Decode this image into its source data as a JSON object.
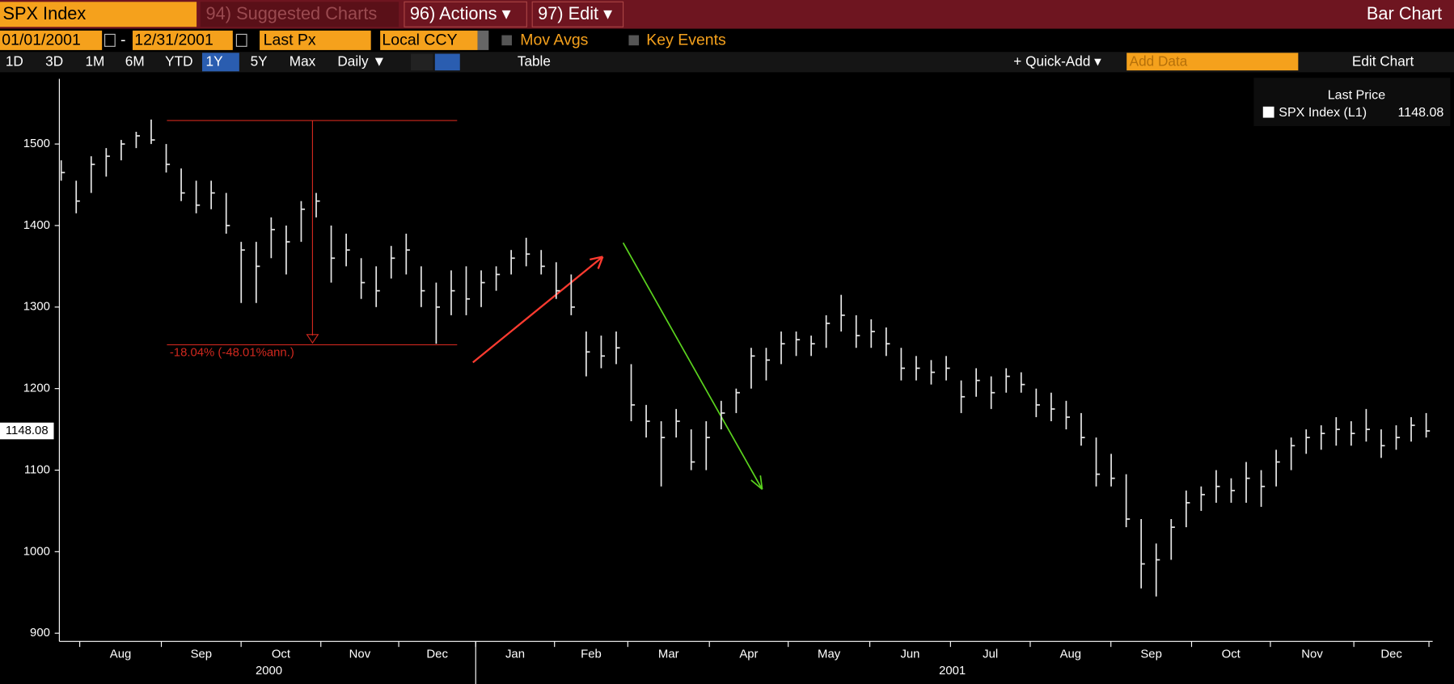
{
  "toolbar": {
    "ticker": "SPX Index",
    "suggested": "94) Suggested Charts",
    "actions": "96) Actions ▾",
    "edit": "97) Edit ▾",
    "chart_kind": "Bar Chart",
    "start_date": "01/01/2001",
    "date_sep": "-",
    "end_date": "12/31/2001",
    "field": "Last Px",
    "currency": "Local CCY",
    "mov_avgs": "Mov Avgs",
    "key_events": "Key Events",
    "periods": [
      "1D",
      "3D",
      "1M",
      "6M",
      "YTD",
      "1Y",
      "5Y",
      "Max"
    ],
    "active_period": "1Y",
    "frequency": "Daily ▼",
    "table": "Table",
    "quick_add": "+ Quick-Add ▾",
    "add_data": "Add Data",
    "edit_chart": "Edit Chart"
  },
  "chart_data": {
    "type": "ohlc",
    "legend_title": "Last Price",
    "annotation": "-18.04% (-48.01%ann.)",
    "x_month_labels": [
      "Aug",
      "Sep",
      "Oct",
      "Nov",
      "Dec",
      "Jan",
      "Feb",
      "Mar",
      "Apr",
      "May",
      "Jun",
      "Jul",
      "Aug",
      "Sep",
      "Oct",
      "Nov",
      "Dec"
    ],
    "x_year_labels": [
      "2000",
      "2001"
    ],
    "ylim": [
      890,
      1580
    ],
    "yticks": [
      900,
      1000,
      1100,
      1200,
      1300,
      1400,
      1500
    ],
    "series": [
      {
        "name": "SPX Index  (L1)",
        "color": "#e6e6e6",
        "high": [
          1480,
          1455,
          1485,
          1495,
          1505,
          1515,
          1530,
          1500,
          1470,
          1455,
          1455,
          1440,
          1380,
          1380,
          1410,
          1400,
          1430,
          1440,
          1400,
          1390,
          1360,
          1350,
          1375,
          1390,
          1350,
          1330,
          1345,
          1350,
          1345,
          1350,
          1370,
          1385,
          1370,
          1355,
          1340,
          1270,
          1265,
          1270,
          1230,
          1180,
          1160,
          1175,
          1150,
          1160,
          1185,
          1200,
          1250,
          1250,
          1270,
          1270,
          1265,
          1290,
          1315,
          1290,
          1285,
          1275,
          1250,
          1240,
          1235,
          1240,
          1210,
          1225,
          1215,
          1225,
          1220,
          1200,
          1195,
          1185,
          1170,
          1140,
          1120,
          1095,
          1040,
          1010,
          1040,
          1075,
          1080,
          1100,
          1090,
          1110,
          1100,
          1125,
          1140,
          1150,
          1155,
          1165,
          1160,
          1175,
          1150,
          1155,
          1165,
          1170
        ],
        "low": [
          1455,
          1415,
          1440,
          1460,
          1480,
          1495,
          1500,
          1465,
          1430,
          1415,
          1420,
          1390,
          1305,
          1305,
          1360,
          1340,
          1380,
          1410,
          1330,
          1350,
          1310,
          1300,
          1335,
          1340,
          1300,
          1255,
          1290,
          1290,
          1300,
          1320,
          1340,
          1350,
          1340,
          1310,
          1290,
          1215,
          1225,
          1230,
          1160,
          1140,
          1080,
          1140,
          1100,
          1100,
          1150,
          1170,
          1200,
          1210,
          1230,
          1240,
          1240,
          1250,
          1270,
          1250,
          1250,
          1240,
          1210,
          1210,
          1205,
          1210,
          1170,
          1190,
          1175,
          1195,
          1195,
          1165,
          1160,
          1150,
          1130,
          1080,
          1080,
          1030,
          955,
          945,
          990,
          1030,
          1050,
          1060,
          1060,
          1060,
          1055,
          1080,
          1100,
          1120,
          1125,
          1130,
          1130,
          1135,
          1115,
          1125,
          1135,
          1140
        ],
        "values": [
          1465,
          1430,
          1475,
          1485,
          1500,
          1510,
          1505,
          1475,
          1440,
          1425,
          1440,
          1400,
          1370,
          1350,
          1395,
          1380,
          1420,
          1430,
          1360,
          1370,
          1330,
          1320,
          1360,
          1370,
          1320,
          1300,
          1320,
          1310,
          1330,
          1340,
          1360,
          1365,
          1350,
          1320,
          1300,
          1245,
          1240,
          1250,
          1180,
          1160,
          1140,
          1160,
          1110,
          1140,
          1170,
          1195,
          1240,
          1235,
          1255,
          1260,
          1255,
          1280,
          1290,
          1265,
          1270,
          1255,
          1225,
          1225,
          1220,
          1225,
          1190,
          1210,
          1195,
          1215,
          1205,
          1180,
          1175,
          1165,
          1140,
          1095,
          1090,
          1040,
          985,
          990,
          1030,
          1060,
          1070,
          1080,
          1075,
          1090,
          1080,
          1110,
          1130,
          1140,
          1145,
          1150,
          1145,
          1150,
          1130,
          1140,
          1155,
          1148.08
        ]
      }
    ]
  }
}
